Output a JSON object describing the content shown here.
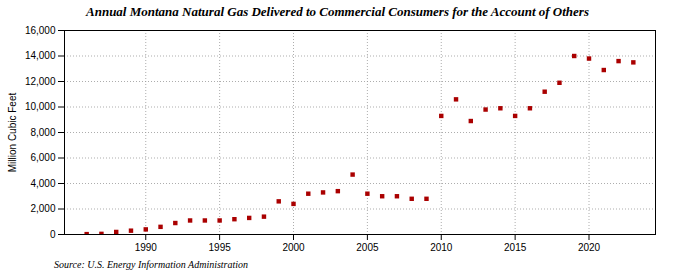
{
  "chart_data": {
    "type": "scatter",
    "title": "Annual Montana Natural Gas Delivered to Commercial Consumers for the Account of Others",
    "ylabel": "Million Cubic Feet",
    "source": "Source: U.S. Energy Information Administration",
    "x": [
      1986,
      1987,
      1988,
      1989,
      1990,
      1991,
      1992,
      1993,
      1994,
      1995,
      1996,
      1997,
      1998,
      1999,
      2000,
      2001,
      2002,
      2003,
      2004,
      2005,
      2006,
      2007,
      2008,
      2009,
      2010,
      2011,
      2012,
      2013,
      2014,
      2015,
      2016,
      2017,
      2018,
      2019,
      2020,
      2021,
      2022,
      2023
    ],
    "values": [
      30,
      50,
      200,
      300,
      400,
      600,
      900,
      1100,
      1100,
      1100,
      1200,
      1300,
      1400,
      2600,
      2400,
      3200,
      3300,
      3400,
      4700,
      3200,
      3000,
      3000,
      2800,
      2800,
      9300,
      10600,
      8900,
      9800,
      9900,
      9300,
      9900,
      11200,
      11900,
      14000,
      13800,
      12900,
      13600,
      13500
    ],
    "color": "#aa0000",
    "marker": "square",
    "xlim": [
      1984.5,
      2024.5
    ],
    "xticks": [
      1990,
      1995,
      2000,
      2005,
      2010,
      2015,
      2020
    ],
    "ylim": [
      0,
      16000
    ],
    "yticks": [
      0,
      {
        "value": 2000,
        "label": "2,000"
      },
      {
        "value": 4000,
        "label": "4,000"
      },
      {
        "value": 6000,
        "label": "6,000"
      },
      {
        "value": 8000,
        "label": "8,000"
      },
      {
        "value": 10000,
        "label": "10,000"
      },
      {
        "value": 12000,
        "label": "12,000"
      },
      {
        "value": 14000,
        "label": "14,000"
      },
      {
        "value": 16000,
        "label": "16,000"
      }
    ],
    "grid": true
  }
}
